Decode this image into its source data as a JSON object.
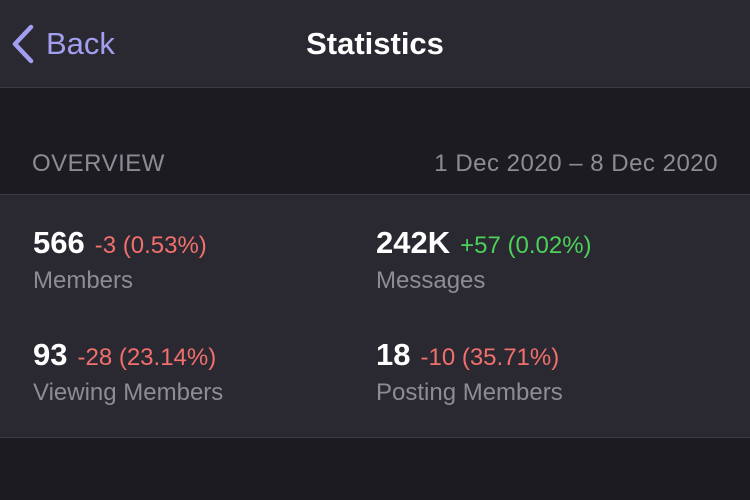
{
  "nav": {
    "back_label": "Back",
    "title": "Statistics"
  },
  "overview": {
    "label": "OVERVIEW",
    "date_range": "1 Dec 2020 – 8 Dec 2020"
  },
  "stats": [
    {
      "value": "566",
      "delta": "-3 (0.53%)",
      "trend": "negative",
      "label": "Members"
    },
    {
      "value": "242K",
      "delta": "+57 (0.02%)",
      "trend": "positive",
      "label": "Messages"
    },
    {
      "value": "93",
      "delta": "-28 (23.14%)",
      "trend": "negative",
      "label": "Viewing Members"
    },
    {
      "value": "18",
      "delta": "-10 (35.71%)",
      "trend": "negative",
      "label": "Posting Members"
    }
  ],
  "colors": {
    "accent": "#a39ff0",
    "negative": "#f16f6c",
    "positive": "#4bd159",
    "background": "#1c1b22",
    "panel": "#2a2931"
  },
  "icons": {
    "back": "chevron-left-icon"
  }
}
